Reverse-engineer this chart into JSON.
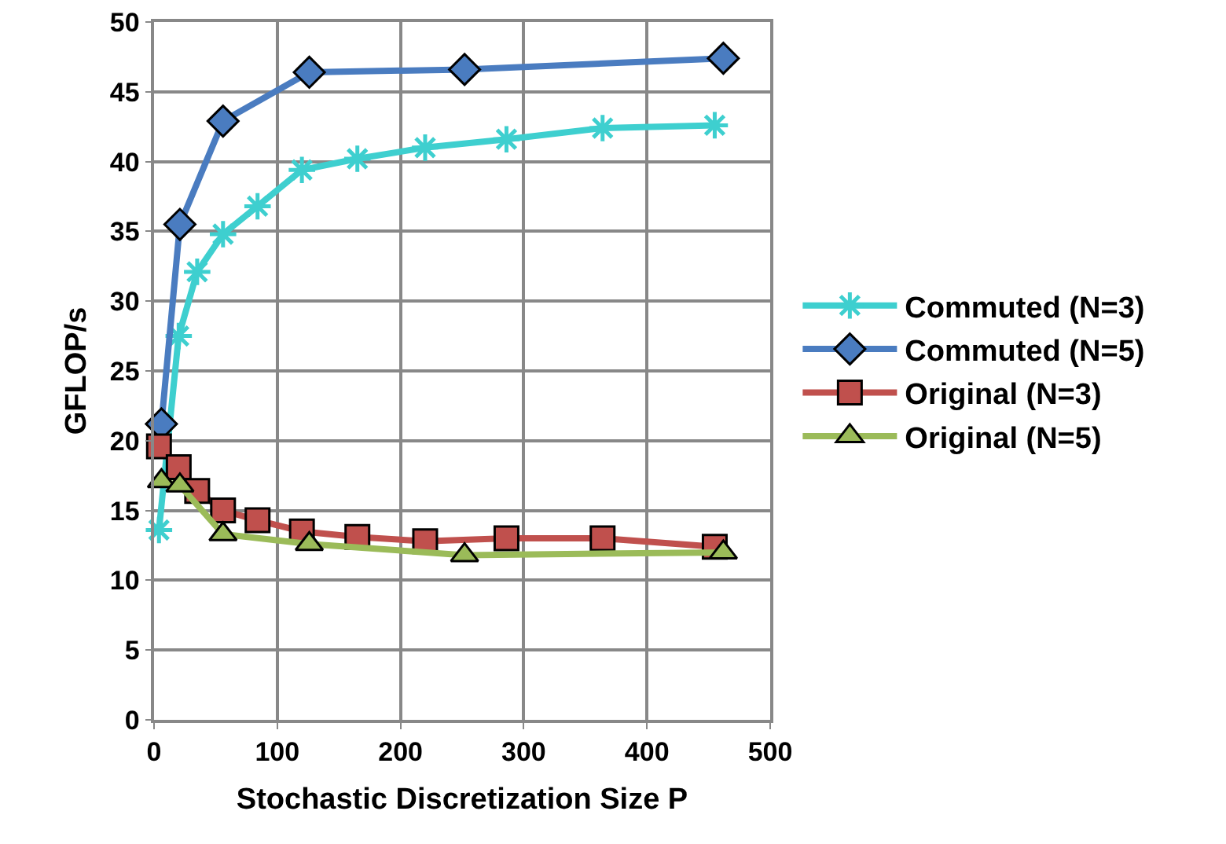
{
  "chart_data": {
    "type": "line",
    "xlabel": "Stochastic Discretization Size P",
    "ylabel": "GFLOP/s",
    "xlim": [
      0,
      500
    ],
    "xticks": [
      0,
      100,
      200,
      300,
      400,
      500
    ],
    "ylim": [
      0,
      50
    ],
    "yticks": [
      0,
      5,
      10,
      15,
      20,
      25,
      30,
      35,
      40,
      45,
      50
    ],
    "grid": true,
    "legend": "right",
    "line_style": "solid",
    "series": [
      {
        "name": "Commuted (N=3)",
        "color": "#3ecfcf",
        "marker": "cross",
        "x": [
          4,
          20,
          35,
          56,
          84,
          120,
          165,
          220,
          286,
          364,
          455
        ],
        "values": [
          13.6,
          27.5,
          32.1,
          34.8,
          36.8,
          39.4,
          40.2,
          41.0,
          41.6,
          42.4,
          42.6
        ]
      },
      {
        "name": "Commuted (N=5)",
        "color": "#4a7cc0",
        "marker": "diamond",
        "x": [
          6,
          21,
          56,
          126,
          252,
          462
        ],
        "values": [
          21.2,
          35.5,
          42.9,
          46.4,
          46.6,
          47.4
        ]
      },
      {
        "name": "Original (N=3)",
        "color": "#c0504d",
        "marker": "square",
        "x": [
          4,
          20,
          35,
          56,
          84,
          120,
          165,
          220,
          286,
          364,
          455
        ],
        "values": [
          19.6,
          18.1,
          16.4,
          15.0,
          14.3,
          13.5,
          13.1,
          12.8,
          13.0,
          13.0,
          12.4
        ]
      },
      {
        "name": "Original (N=5)",
        "color": "#9bbb59",
        "marker": "triangle",
        "x": [
          6,
          21,
          56,
          126,
          252,
          462
        ],
        "values": [
          17.1,
          16.8,
          13.3,
          12.6,
          11.8,
          12.0
        ]
      }
    ]
  }
}
